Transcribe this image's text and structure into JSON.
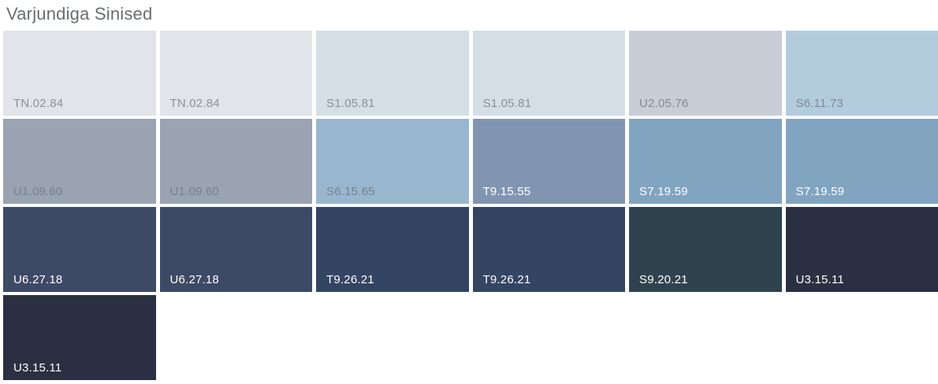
{
  "title": "Varjundiga Sinised",
  "colors": {
    "background": "#ffffff",
    "title_text": "#6a6e71",
    "label_gray": "#838b95",
    "label_white": "#ffffff"
  },
  "grid": {
    "columns": 6,
    "rows": 4
  },
  "swatches": [
    {
      "code": "TN.02.84",
      "color": "#e1e4e8",
      "label_color": "#8c9298"
    },
    {
      "code": "TN.02.84",
      "color": "#e1e4e8",
      "label_color": "#8c9298"
    },
    {
      "code": "S1.05.81",
      "color": "#d3dfe5",
      "label_color": "#87939a"
    },
    {
      "code": "S1.05.81",
      "color": "#d3dfe5",
      "label_color": "#87939a"
    },
    {
      "code": "U2.05.76",
      "color": "#c8cdd7",
      "label_color": "#848b95"
    },
    {
      "code": "S6.11.73",
      "color": "#b3ccdd",
      "label_color": "#7d8b96"
    },
    {
      "code": "U1.09.60",
      "color": "#9aa3b1",
      "label_color": "#79818d"
    },
    {
      "code": "U1.09.60",
      "color": "#9aa3b1",
      "label_color": "#79818d"
    },
    {
      "code": "S6.15.65",
      "color": "#98b7ce",
      "label_color": "#75828d"
    },
    {
      "code": "T9.15.55",
      "color": "#8295b0",
      "label_color": "#ffffff"
    },
    {
      "code": "S7.19.59",
      "color": "#81a4c1",
      "label_color": "#ffffff"
    },
    {
      "code": "S7.19.59",
      "color": "#81a4c1",
      "label_color": "#ffffff"
    },
    {
      "code": "U6.27.18",
      "color": "#3d4a66",
      "label_color": "#ffffff"
    },
    {
      "code": "U6.27.18",
      "color": "#3d4a66",
      "label_color": "#ffffff"
    },
    {
      "code": "T9.26.21",
      "color": "#334562",
      "label_color": "#ffffff"
    },
    {
      "code": "T9.26.21",
      "color": "#334562",
      "label_color": "#ffffff"
    },
    {
      "code": "S9.20.21",
      "color": "#2f434f",
      "label_color": "#ffffff"
    },
    {
      "code": "U3.15.11",
      "color": "#2a3041",
      "label_color": "#ffffff"
    },
    {
      "code": "U3.15.11",
      "color": "#2a3041",
      "label_color": "#ffffff"
    }
  ]
}
